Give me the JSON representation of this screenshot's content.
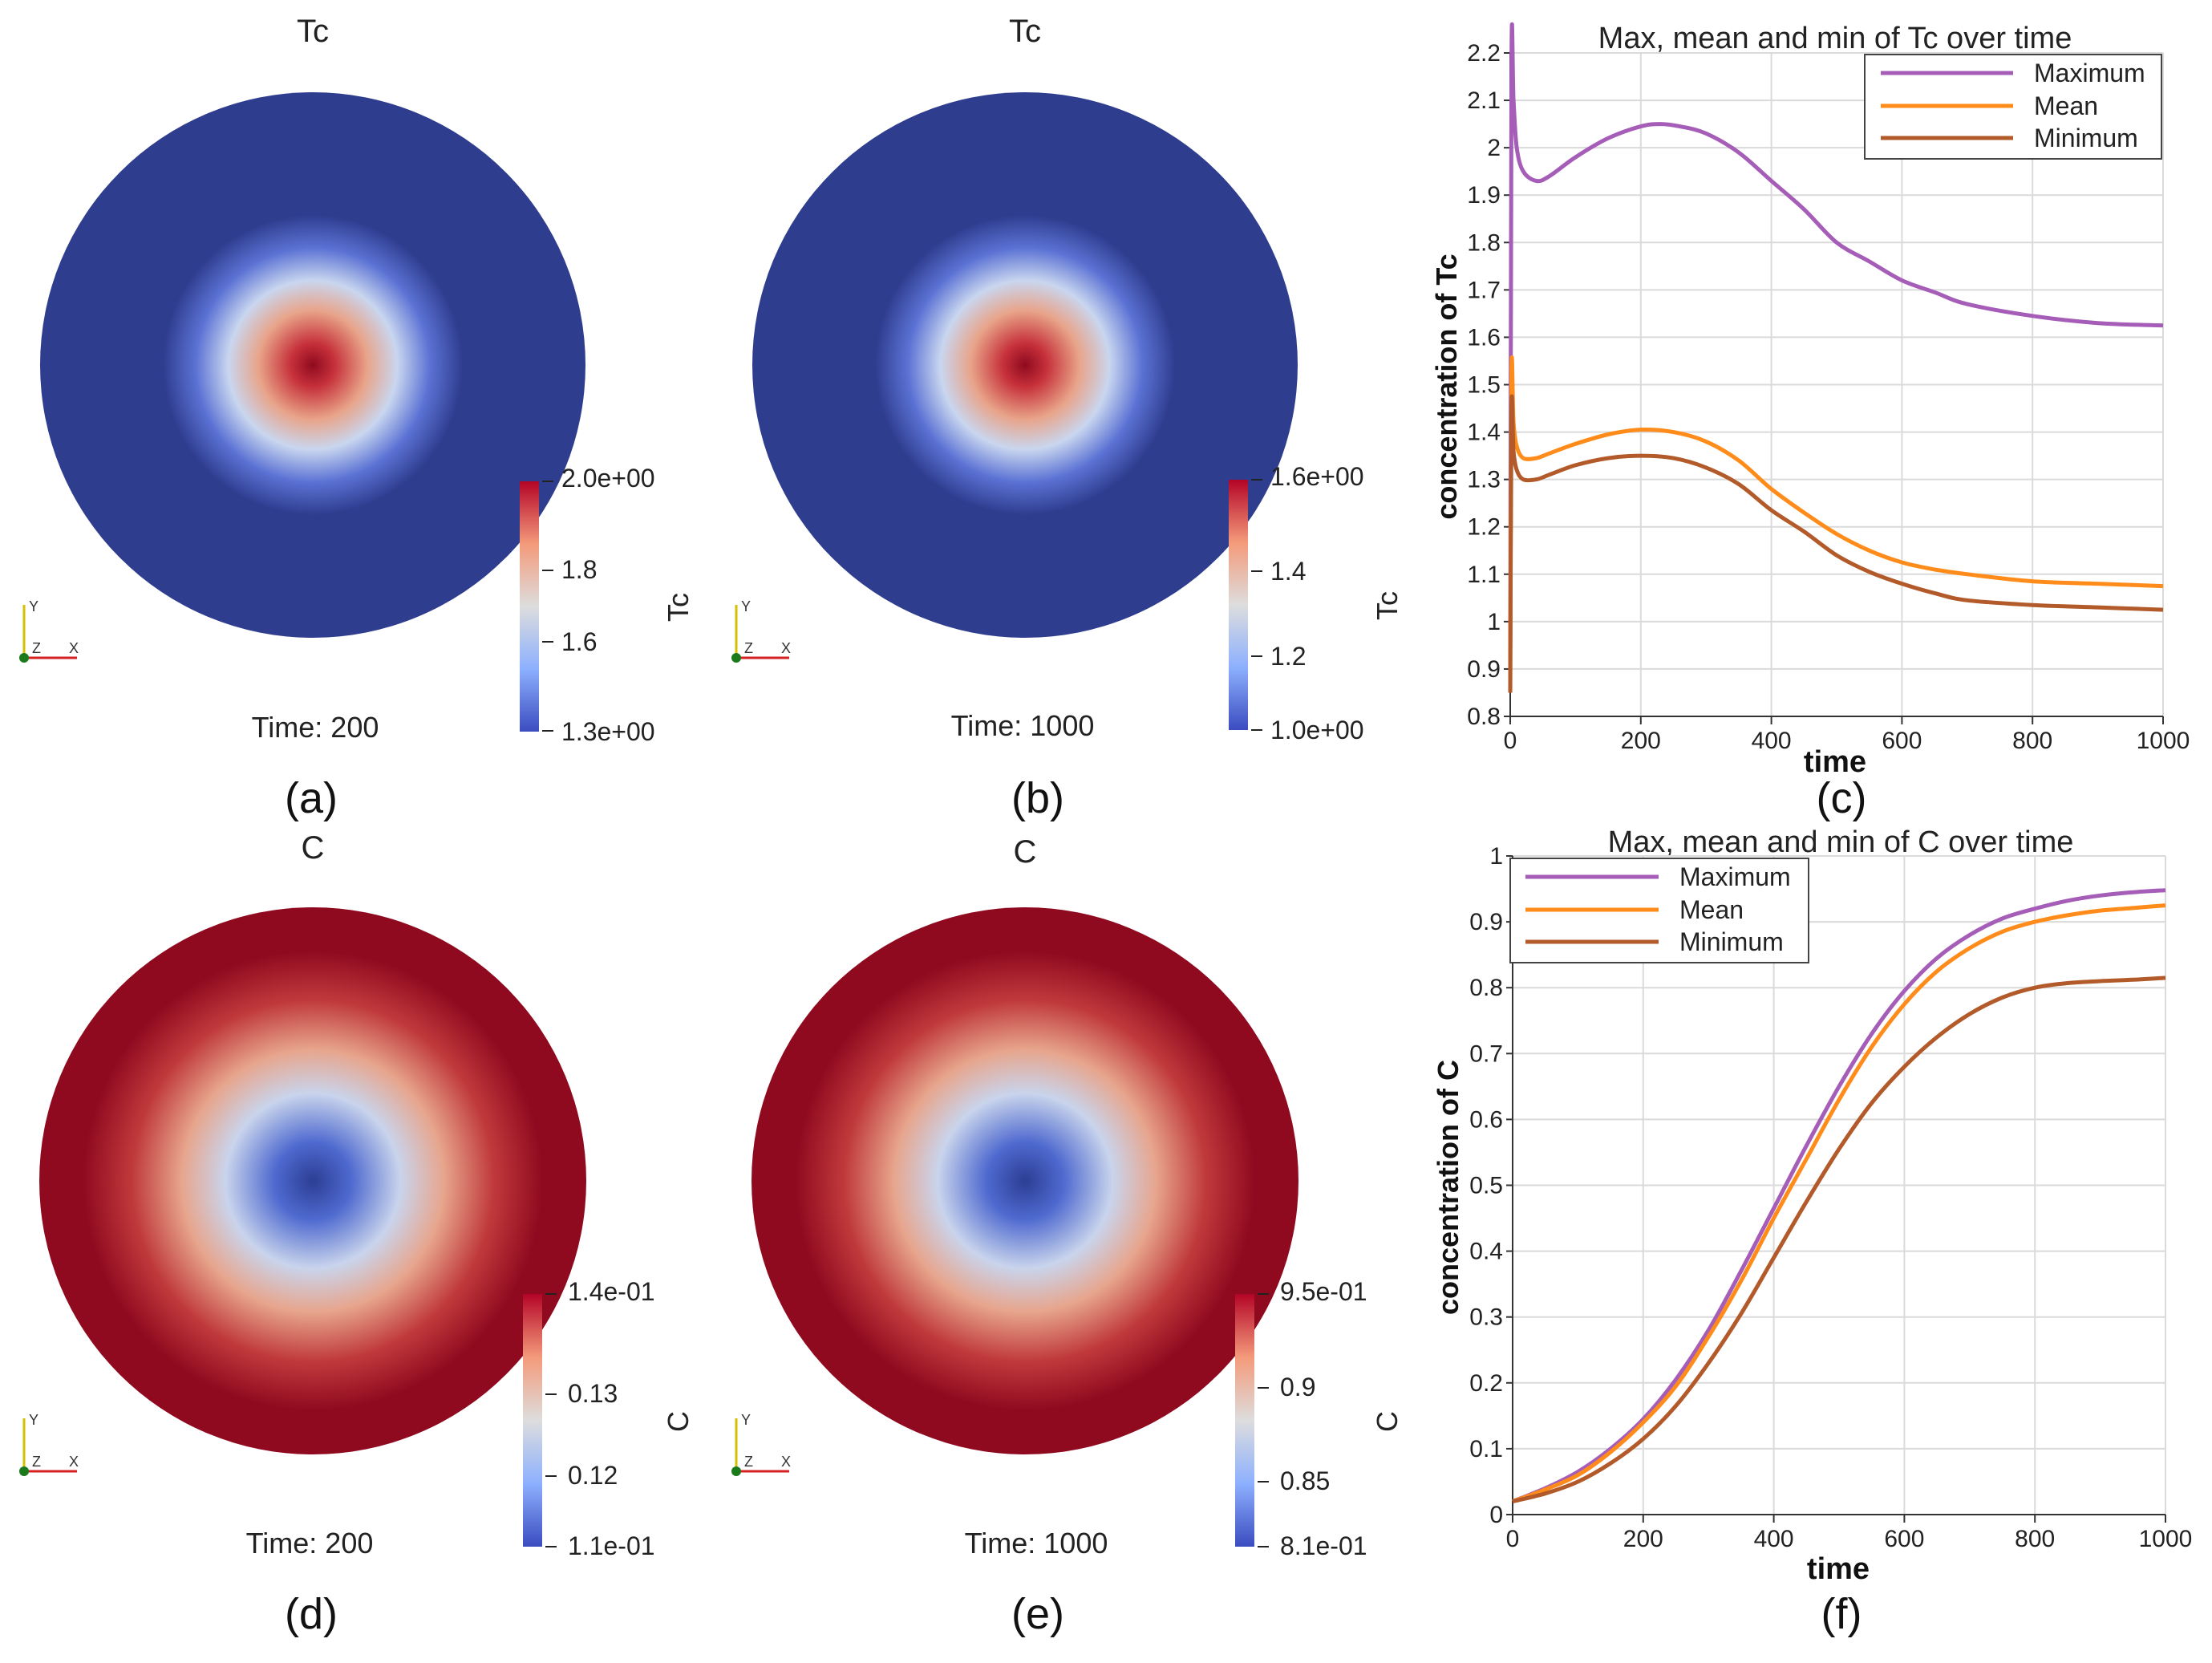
{
  "panels": {
    "a": {
      "label": "(a)",
      "field": "Tc",
      "time_text": "Time: 200",
      "scalar_bar_title": "Tc",
      "scalar_bar_ticks": [
        "2.0e+00",
        "1.8",
        "1.6",
        "1.3e+00"
      ],
      "tick_values": [
        2.0,
        1.8,
        1.6,
        1.3
      ],
      "range": [
        1.3,
        2.0
      ],
      "profile": "peak"
    },
    "b": {
      "label": "(b)",
      "field": "Tc",
      "time_text": "Time: 1000",
      "scalar_bar_title": "Tc",
      "scalar_bar_ticks": [
        "1.6e+00",
        "1.4",
        "1.2",
        "1.0e+00"
      ],
      "tick_values": [
        1.6,
        1.4,
        1.2,
        1.0
      ],
      "range": [
        1.0,
        1.6
      ],
      "profile": "peak"
    },
    "d": {
      "label": "(d)",
      "field": "C",
      "time_text": "Time: 200",
      "scalar_bar_title": "C",
      "scalar_bar_ticks": [
        "1.4e-01",
        "0.13",
        "0.12",
        "1.1e-01"
      ],
      "tick_values": [
        0.14,
        0.13,
        0.12,
        0.11
      ],
      "range": [
        0.11,
        0.14
      ],
      "profile": "dip"
    },
    "e": {
      "label": "(e)",
      "field": "C",
      "time_text": "Time: 1000",
      "scalar_bar_title": "C",
      "scalar_bar_ticks": [
        "9.5e-01",
        "0.9",
        "0.85",
        "8.1e-01"
      ],
      "tick_values": [
        0.95,
        0.9,
        0.85,
        0.81
      ],
      "range": [
        0.81,
        0.95
      ],
      "profile": "dip"
    }
  },
  "axes_triad": {
    "x": "X",
    "y": "Y",
    "z": "Z"
  },
  "colors": {
    "cool": "#3b4cc0",
    "neutral": "#dddddd",
    "warm": "#b40426",
    "dark_blue": "#2f3d8f",
    "dark_red": "#8f0a1f",
    "max_series": "#a55db8",
    "mean_series": "#ff8c1a",
    "min_series": "#b35a2a",
    "grid": "#dadada"
  },
  "chart_data": [
    {
      "type": "line",
      "panel_label": "(c)",
      "title": "Max, mean and min of Tc over time",
      "xlabel": "time",
      "ylabel": "concentration of Tc",
      "xlim": [
        0,
        1000
      ],
      "ylim": [
        0.8,
        2.2
      ],
      "xticks": [
        0,
        200,
        400,
        600,
        800,
        1000
      ],
      "xtick_labels": [
        "0",
        "200",
        "400",
        "600",
        "800",
        "1000"
      ],
      "yticks": [
        0.8,
        0.9,
        1.0,
        1.1,
        1.2,
        1.3,
        1.4,
        1.5,
        1.6,
        1.7,
        1.8,
        1.9,
        2.0,
        2.1,
        2.2
      ],
      "ytick_labels": [
        "0.8",
        "0.9",
        "1",
        "1.1",
        "1.2",
        "1.3",
        "1.4",
        "1.5",
        "1.6",
        "1.7",
        "1.8",
        "1.9",
        "2",
        "2.1",
        "2.2"
      ],
      "grid": true,
      "legend_position": "top-right",
      "series": [
        {
          "name": "Maximum",
          "color": "#a55db8",
          "x": [
            0,
            2,
            5,
            10,
            20,
            40,
            60,
            100,
            150,
            200,
            230,
            260,
            300,
            350,
            400,
            450,
            500,
            550,
            600,
            650,
            700,
            800,
            900,
            1000
          ],
          "y": [
            0.85,
            2.18,
            2.1,
            2.0,
            1.95,
            1.93,
            1.94,
            1.98,
            2.02,
            2.045,
            2.05,
            2.045,
            2.03,
            1.99,
            1.93,
            1.87,
            1.8,
            1.76,
            1.72,
            1.695,
            1.67,
            1.645,
            1.63,
            1.625
          ]
        },
        {
          "name": "Mean",
          "color": "#ff8c1a",
          "x": [
            0,
            2,
            5,
            10,
            20,
            40,
            60,
            100,
            150,
            200,
            250,
            300,
            350,
            400,
            450,
            500,
            550,
            600,
            650,
            700,
            800,
            900,
            1000
          ],
          "y": [
            0.85,
            1.53,
            1.42,
            1.37,
            1.345,
            1.345,
            1.355,
            1.375,
            1.395,
            1.405,
            1.4,
            1.38,
            1.34,
            1.28,
            1.23,
            1.185,
            1.15,
            1.125,
            1.11,
            1.1,
            1.085,
            1.08,
            1.075
          ]
        },
        {
          "name": "Minimum",
          "color": "#b35a2a",
          "x": [
            0,
            2,
            5,
            10,
            20,
            40,
            60,
            100,
            150,
            200,
            250,
            300,
            350,
            400,
            450,
            500,
            550,
            600,
            650,
            700,
            800,
            900,
            1000
          ],
          "y": [
            0.85,
            1.45,
            1.36,
            1.32,
            1.3,
            1.3,
            1.31,
            1.33,
            1.345,
            1.35,
            1.345,
            1.325,
            1.29,
            1.235,
            1.19,
            1.14,
            1.105,
            1.08,
            1.06,
            1.045,
            1.035,
            1.03,
            1.025
          ]
        }
      ]
    },
    {
      "type": "line",
      "panel_label": "(f)",
      "title": "Max, mean and min of C over time",
      "xlabel": "time",
      "ylabel": "concentration of C",
      "xlim": [
        0,
        1000
      ],
      "ylim": [
        0,
        1
      ],
      "xticks": [
        0,
        200,
        400,
        600,
        800,
        1000
      ],
      "xtick_labels": [
        "0",
        "200",
        "400",
        "600",
        "800",
        "1000"
      ],
      "yticks": [
        0,
        0.1,
        0.2,
        0.3,
        0.4,
        0.5,
        0.6,
        0.7,
        0.8,
        0.9,
        1
      ],
      "ytick_labels": [
        "0",
        "0.1",
        "0.2",
        "0.3",
        "0.4",
        "0.5",
        "0.6",
        "0.7",
        "0.8",
        "0.9",
        "1"
      ],
      "grid": true,
      "legend_position": "top-left",
      "series": [
        {
          "name": "Maximum",
          "color": "#a55db8",
          "x": [
            0,
            50,
            100,
            150,
            200,
            250,
            300,
            350,
            400,
            450,
            500,
            550,
            600,
            650,
            700,
            750,
            800,
            850,
            900,
            950,
            1000
          ],
          "y": [
            0.02,
            0.04,
            0.065,
            0.1,
            0.145,
            0.205,
            0.28,
            0.37,
            0.465,
            0.56,
            0.65,
            0.73,
            0.795,
            0.845,
            0.88,
            0.905,
            0.92,
            0.932,
            0.94,
            0.945,
            0.948
          ]
        },
        {
          "name": "Mean",
          "color": "#ff8c1a",
          "x": [
            0,
            50,
            100,
            150,
            200,
            250,
            300,
            350,
            400,
            450,
            500,
            550,
            600,
            650,
            700,
            750,
            800,
            850,
            900,
            950,
            1000
          ],
          "y": [
            0.02,
            0.038,
            0.06,
            0.095,
            0.14,
            0.195,
            0.27,
            0.355,
            0.45,
            0.54,
            0.63,
            0.71,
            0.775,
            0.825,
            0.86,
            0.885,
            0.9,
            0.91,
            0.917,
            0.921,
            0.925
          ]
        },
        {
          "name": "Minimum",
          "color": "#b35a2a",
          "x": [
            0,
            50,
            100,
            150,
            200,
            250,
            300,
            350,
            400,
            450,
            500,
            550,
            600,
            650,
            700,
            750,
            800,
            850,
            900,
            950,
            1000
          ],
          "y": [
            0.02,
            0.032,
            0.05,
            0.078,
            0.115,
            0.165,
            0.23,
            0.305,
            0.39,
            0.475,
            0.555,
            0.625,
            0.68,
            0.725,
            0.76,
            0.785,
            0.8,
            0.807,
            0.81,
            0.812,
            0.815
          ]
        }
      ]
    }
  ]
}
